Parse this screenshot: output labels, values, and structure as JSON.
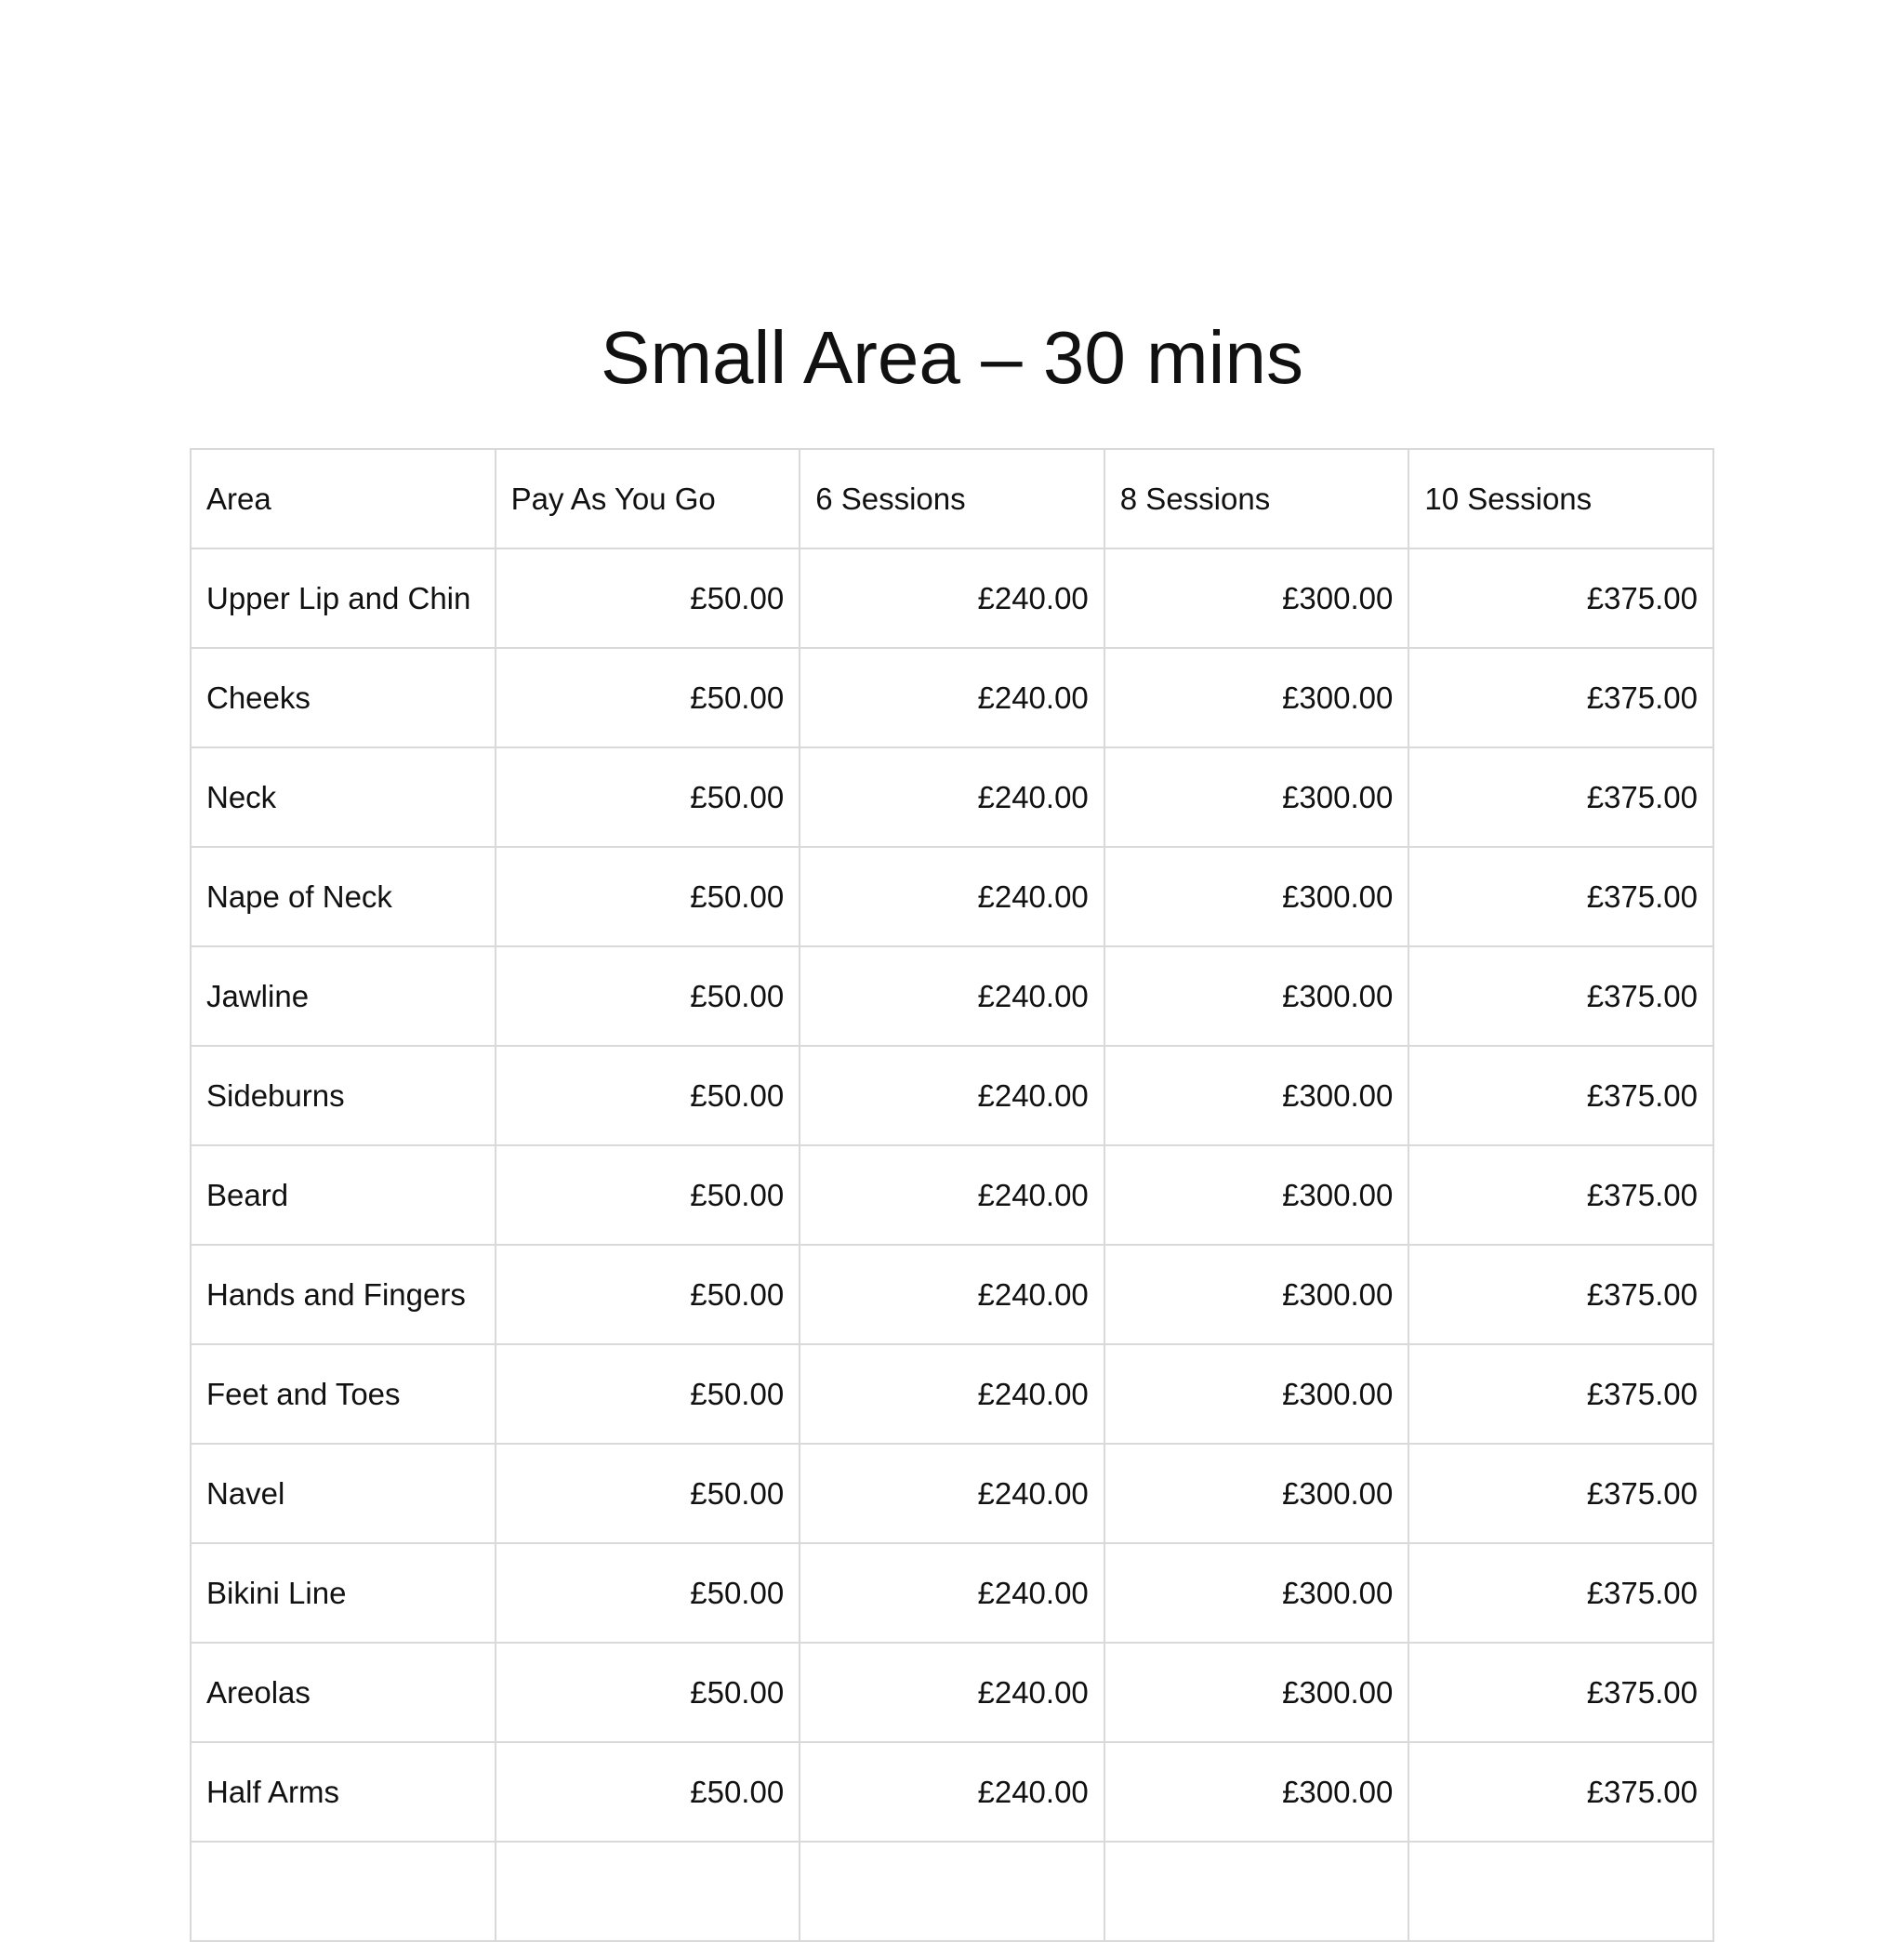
{
  "title": "Small Area – 30 mins",
  "table": {
    "headers": [
      "Area",
      "Pay As You Go",
      "6 Sessions",
      "8 Sessions",
      "10 Sessions"
    ],
    "rows": [
      [
        "Upper Lip and Chin",
        "£50.00",
        "£240.00",
        "£300.00",
        "£375.00"
      ],
      [
        "Cheeks",
        "£50.00",
        "£240.00",
        "£300.00",
        "£375.00"
      ],
      [
        "Neck",
        "£50.00",
        "£240.00",
        "£300.00",
        "£375.00"
      ],
      [
        "Nape of Neck",
        "£50.00",
        "£240.00",
        "£300.00",
        "£375.00"
      ],
      [
        "Jawline",
        "£50.00",
        "£240.00",
        "£300.00",
        "£375.00"
      ],
      [
        "Sideburns",
        "£50.00",
        "£240.00",
        "£300.00",
        "£375.00"
      ],
      [
        "Beard",
        "£50.00",
        "£240.00",
        "£300.00",
        "£375.00"
      ],
      [
        "Hands and Fingers",
        "£50.00",
        "£240.00",
        "£300.00",
        "£375.00"
      ],
      [
        "Feet and Toes",
        "£50.00",
        "£240.00",
        "£300.00",
        "£375.00"
      ],
      [
        "Navel",
        "£50.00",
        "£240.00",
        "£300.00",
        "£375.00"
      ],
      [
        "Bikini Line",
        "£50.00",
        "£240.00",
        "£300.00",
        "£375.00"
      ],
      [
        "Areolas",
        "£50.00",
        "£240.00",
        "£300.00",
        "£375.00"
      ],
      [
        "Half Arms",
        "£50.00",
        "£240.00",
        "£300.00",
        "£375.00"
      ],
      [
        "",
        "",
        "",
        "",
        ""
      ]
    ]
  }
}
